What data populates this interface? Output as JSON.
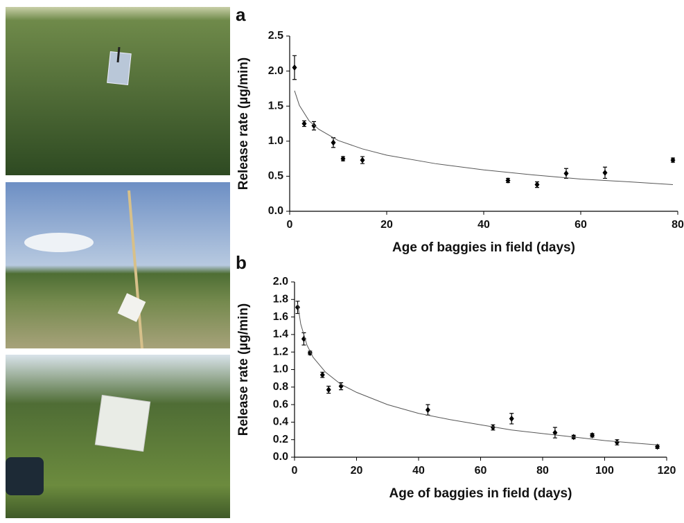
{
  "chart_data": [
    {
      "type": "scatter",
      "panel_label": "a",
      "x_label": "Age of baggies in field (days)",
      "y_label": "Release rate (µg/min)",
      "xlim": [
        0,
        80
      ],
      "xticks": [
        0,
        20,
        40,
        60,
        80
      ],
      "ylim": [
        0,
        2.5
      ],
      "yticks": [
        {
          "value": 0,
          "label": "0.0"
        },
        0.5,
        {
          "value": 1,
          "label": "1.0"
        },
        1.5,
        {
          "value": 2,
          "label": "2.0"
        },
        2.5
      ],
      "color": "#000000",
      "series": [
        {
          "type": "scatter",
          "x": [
            1,
            3,
            5,
            9,
            11,
            15,
            45,
            51,
            57,
            65,
            79
          ],
          "values": [
            2.05,
            1.25,
            1.22,
            0.98,
            0.75,
            0.73,
            0.44,
            0.38,
            0.54,
            0.55,
            0.73
          ],
          "errors": [
            0.17,
            0.04,
            0.06,
            0.07,
            0.03,
            0.05,
            0.03,
            0.04,
            0.07,
            0.08,
            0.03
          ]
        },
        {
          "type": "line",
          "x": [
            1,
            2,
            4,
            6,
            10,
            15,
            20,
            30,
            40,
            50,
            60,
            70,
            79
          ],
          "values": [
            1.72,
            1.51,
            1.29,
            1.17,
            1.01,
            0.89,
            0.8,
            0.68,
            0.59,
            0.52,
            0.46,
            0.42,
            0.38
          ]
        }
      ]
    },
    {
      "type": "scatter",
      "panel_label": "b",
      "x_label": "Age of baggies in field (days)",
      "y_label": "Release rate (µg/min)",
      "xlim": [
        0,
        120
      ],
      "xticks": [
        0,
        20,
        40,
        60,
        80,
        100,
        120
      ],
      "ylim": [
        0,
        2
      ],
      "yticks": [
        {
          "value": 0,
          "label": "0.0"
        },
        0.2,
        0.4,
        0.6,
        0.8,
        {
          "value": 1,
          "label": "1.0"
        },
        1.2,
        1.4,
        1.6,
        1.8,
        {
          "value": 2,
          "label": "2.0"
        }
      ],
      "color": "#000000",
      "series": [
        {
          "type": "scatter",
          "x": [
            1,
            3,
            5,
            9,
            11,
            15,
            43,
            64,
            70,
            84,
            90,
            96,
            104,
            117
          ],
          "values": [
            1.71,
            1.35,
            1.19,
            0.94,
            0.77,
            0.81,
            0.54,
            0.34,
            0.44,
            0.28,
            0.23,
            0.25,
            0.17,
            0.12
          ],
          "errors": [
            0.07,
            0.07,
            0.02,
            0.03,
            0.04,
            0.04,
            0.06,
            0.03,
            0.06,
            0.06,
            0.02,
            0.02,
            0.03,
            0.02
          ]
        },
        {
          "type": "line",
          "x": [
            1,
            2,
            4,
            6,
            10,
            15,
            20,
            30,
            40,
            50,
            60,
            70,
            80,
            90,
            100,
            110,
            117
          ],
          "values": [
            1.75,
            1.52,
            1.28,
            1.14,
            0.97,
            0.83,
            0.74,
            0.6,
            0.5,
            0.43,
            0.37,
            0.31,
            0.27,
            0.23,
            0.19,
            0.16,
            0.14
          ]
        }
      ]
    }
  ]
}
